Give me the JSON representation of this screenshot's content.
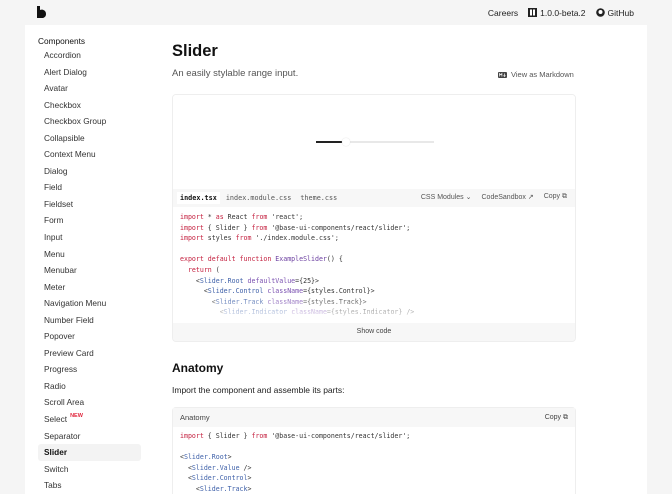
{
  "header": {
    "logo": "b",
    "nav": [
      {
        "label": "Careers"
      },
      {
        "label": "1.0.0-beta.2",
        "icon": "book-icon"
      },
      {
        "label": "GitHub",
        "icon": "github-icon"
      }
    ]
  },
  "sidebar": {
    "heading": "Components",
    "items": [
      "Accordion",
      "Alert Dialog",
      "Avatar",
      "Checkbox",
      "Checkbox Group",
      "Collapsible",
      "Context Menu",
      "Dialog",
      "Field",
      "Fieldset",
      "Form",
      "Input",
      "Menu",
      "Menubar",
      "Meter",
      "Navigation Menu",
      "Number Field",
      "Popover",
      "Preview Card",
      "Progress",
      "Radio",
      "Scroll Area",
      "Select",
      "Separator",
      "Slider",
      "Switch",
      "Tabs"
    ],
    "new_badge": "NEW",
    "new_item": "Select",
    "active": "Slider"
  },
  "page": {
    "title": "Slider",
    "subtitle": "An easily stylable range input.",
    "markdown_link": "View as Markdown"
  },
  "demo": {
    "slider_value": 25,
    "slider_max": 100,
    "tabs": [
      "index.tsx",
      "index.module.css",
      "theme.css"
    ],
    "active_tab": "index.tsx",
    "css_select": "CSS Modules",
    "codesandbox": "CodeSandbox",
    "copy": "Copy",
    "show_code": "Show code"
  },
  "anatomy": {
    "title": "Anatomy",
    "intro": "Import the component and assemble its parts:",
    "label": "Anatomy",
    "copy": "Copy"
  },
  "colors": {
    "accent": "#c4203f",
    "tag": "#3d5fa8"
  }
}
